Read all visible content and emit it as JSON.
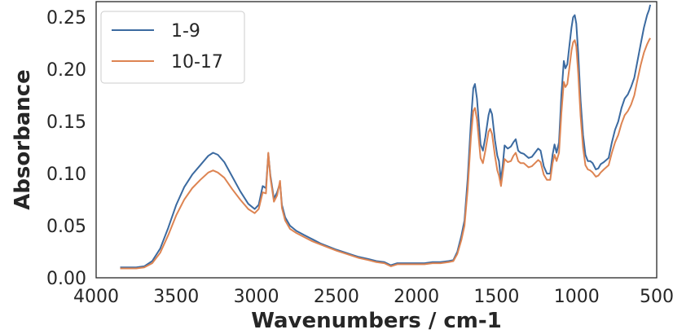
{
  "chart_data": {
    "type": "line",
    "title": "",
    "xlabel": "Wavenumbers / cm-1",
    "ylabel": "Absorbance",
    "xlim": [
      4000,
      500
    ],
    "ylim": [
      0.0,
      0.265
    ],
    "x_reversed": true,
    "grid": false,
    "legend_position": "top-left",
    "x_ticks": [
      {
        "value": 4000,
        "label": "4000"
      },
      {
        "value": 3500,
        "label": "3500"
      },
      {
        "value": 3000,
        "label": "3000"
      },
      {
        "value": 2500,
        "label": "2500"
      },
      {
        "value": 2000,
        "label": "2000"
      },
      {
        "value": 1500,
        "label": "1500"
      },
      {
        "value": 1000,
        "label": "1000"
      },
      {
        "value": 500,
        "label": "500"
      }
    ],
    "y_ticks": [
      {
        "value": 0.0,
        "label": "0.00"
      },
      {
        "value": 0.05,
        "label": "0.05"
      },
      {
        "value": 0.1,
        "label": "0.10"
      },
      {
        "value": 0.15,
        "label": "0.15"
      },
      {
        "value": 0.2,
        "label": "0.20"
      },
      {
        "value": 0.25,
        "label": "0.25"
      }
    ],
    "series": [
      {
        "name": "1-9",
        "color": "#3b6aa0",
        "points": [
          [
            3850,
            0.01
          ],
          [
            3800,
            0.01
          ],
          [
            3750,
            0.01
          ],
          [
            3700,
            0.011
          ],
          [
            3650,
            0.016
          ],
          [
            3600,
            0.028
          ],
          [
            3550,
            0.048
          ],
          [
            3500,
            0.07
          ],
          [
            3450,
            0.087
          ],
          [
            3400,
            0.099
          ],
          [
            3350,
            0.108
          ],
          [
            3300,
            0.117
          ],
          [
            3270,
            0.12
          ],
          [
            3240,
            0.118
          ],
          [
            3200,
            0.111
          ],
          [
            3150,
            0.097
          ],
          [
            3100,
            0.083
          ],
          [
            3050,
            0.071
          ],
          [
            3010,
            0.066
          ],
          [
            2985,
            0.07
          ],
          [
            2960,
            0.088
          ],
          [
            2940,
            0.086
          ],
          [
            2925,
            0.119
          ],
          [
            2912,
            0.098
          ],
          [
            2890,
            0.076
          ],
          [
            2870,
            0.082
          ],
          [
            2852,
            0.091
          ],
          [
            2840,
            0.07
          ],
          [
            2820,
            0.058
          ],
          [
            2790,
            0.05
          ],
          [
            2750,
            0.045
          ],
          [
            2700,
            0.041
          ],
          [
            2650,
            0.037
          ],
          [
            2600,
            0.033
          ],
          [
            2500,
            0.027
          ],
          [
            2400,
            0.022
          ],
          [
            2360,
            0.02
          ],
          [
            2300,
            0.018
          ],
          [
            2250,
            0.016
          ],
          [
            2200,
            0.015
          ],
          [
            2160,
            0.012
          ],
          [
            2120,
            0.014
          ],
          [
            2050,
            0.014
          ],
          [
            2000,
            0.014
          ],
          [
            1950,
            0.014
          ],
          [
            1900,
            0.015
          ],
          [
            1850,
            0.015
          ],
          [
            1800,
            0.016
          ],
          [
            1770,
            0.017
          ],
          [
            1745,
            0.025
          ],
          [
            1720,
            0.04
          ],
          [
            1700,
            0.055
          ],
          [
            1680,
            0.095
          ],
          [
            1660,
            0.15
          ],
          [
            1645,
            0.182
          ],
          [
            1635,
            0.186
          ],
          [
            1622,
            0.172
          ],
          [
            1600,
            0.128
          ],
          [
            1585,
            0.122
          ],
          [
            1570,
            0.135
          ],
          [
            1550,
            0.156
          ],
          [
            1540,
            0.162
          ],
          [
            1528,
            0.157
          ],
          [
            1510,
            0.132
          ],
          [
            1495,
            0.117
          ],
          [
            1485,
            0.112
          ],
          [
            1472,
            0.093
          ],
          [
            1460,
            0.11
          ],
          [
            1450,
            0.127
          ],
          [
            1430,
            0.124
          ],
          [
            1410,
            0.126
          ],
          [
            1395,
            0.13
          ],
          [
            1380,
            0.133
          ],
          [
            1365,
            0.122
          ],
          [
            1350,
            0.12
          ],
          [
            1330,
            0.119
          ],
          [
            1300,
            0.115
          ],
          [
            1280,
            0.116
          ],
          [
            1260,
            0.12
          ],
          [
            1240,
            0.124
          ],
          [
            1225,
            0.122
          ],
          [
            1205,
            0.107
          ],
          [
            1185,
            0.1
          ],
          [
            1165,
            0.1
          ],
          [
            1150,
            0.118
          ],
          [
            1138,
            0.128
          ],
          [
            1125,
            0.12
          ],
          [
            1110,
            0.13
          ],
          [
            1095,
            0.175
          ],
          [
            1080,
            0.208
          ],
          [
            1070,
            0.201
          ],
          [
            1058,
            0.205
          ],
          [
            1045,
            0.223
          ],
          [
            1032,
            0.24
          ],
          [
            1022,
            0.25
          ],
          [
            1012,
            0.252
          ],
          [
            1002,
            0.244
          ],
          [
            990,
            0.215
          ],
          [
            975,
            0.17
          ],
          [
            960,
            0.137
          ],
          [
            945,
            0.118
          ],
          [
            930,
            0.112
          ],
          [
            915,
            0.112
          ],
          [
            900,
            0.11
          ],
          [
            880,
            0.104
          ],
          [
            865,
            0.105
          ],
          [
            850,
            0.109
          ],
          [
            830,
            0.111
          ],
          [
            800,
            0.115
          ],
          [
            780,
            0.13
          ],
          [
            760,
            0.142
          ],
          [
            740,
            0.15
          ],
          [
            720,
            0.163
          ],
          [
            700,
            0.172
          ],
          [
            680,
            0.176
          ],
          [
            660,
            0.183
          ],
          [
            640,
            0.192
          ],
          [
            620,
            0.208
          ],
          [
            600,
            0.224
          ],
          [
            580,
            0.24
          ],
          [
            560,
            0.252
          ],
          [
            548,
            0.257
          ],
          [
            540,
            0.262
          ]
        ]
      },
      {
        "name": "10-17",
        "color": "#dd8452",
        "points": [
          [
            3850,
            0.009
          ],
          [
            3800,
            0.009
          ],
          [
            3750,
            0.009
          ],
          [
            3700,
            0.01
          ],
          [
            3650,
            0.014
          ],
          [
            3600,
            0.024
          ],
          [
            3550,
            0.041
          ],
          [
            3500,
            0.06
          ],
          [
            3450,
            0.075
          ],
          [
            3400,
            0.086
          ],
          [
            3350,
            0.094
          ],
          [
            3300,
            0.101
          ],
          [
            3270,
            0.103
          ],
          [
            3240,
            0.101
          ],
          [
            3200,
            0.096
          ],
          [
            3150,
            0.085
          ],
          [
            3100,
            0.075
          ],
          [
            3050,
            0.066
          ],
          [
            3010,
            0.062
          ],
          [
            2985,
            0.066
          ],
          [
            2960,
            0.082
          ],
          [
            2940,
            0.081
          ],
          [
            2925,
            0.12
          ],
          [
            2912,
            0.096
          ],
          [
            2890,
            0.073
          ],
          [
            2870,
            0.079
          ],
          [
            2852,
            0.093
          ],
          [
            2840,
            0.067
          ],
          [
            2820,
            0.055
          ],
          [
            2790,
            0.047
          ],
          [
            2750,
            0.043
          ],
          [
            2700,
            0.039
          ],
          [
            2650,
            0.035
          ],
          [
            2600,
            0.032
          ],
          [
            2500,
            0.026
          ],
          [
            2400,
            0.021
          ],
          [
            2360,
            0.019
          ],
          [
            2300,
            0.017
          ],
          [
            2250,
            0.015
          ],
          [
            2200,
            0.014
          ],
          [
            2160,
            0.011
          ],
          [
            2120,
            0.013
          ],
          [
            2050,
            0.013
          ],
          [
            2000,
            0.013
          ],
          [
            1950,
            0.013
          ],
          [
            1900,
            0.014
          ],
          [
            1850,
            0.014
          ],
          [
            1800,
            0.015
          ],
          [
            1770,
            0.016
          ],
          [
            1745,
            0.023
          ],
          [
            1720,
            0.036
          ],
          [
            1700,
            0.05
          ],
          [
            1680,
            0.085
          ],
          [
            1660,
            0.135
          ],
          [
            1645,
            0.16
          ],
          [
            1635,
            0.163
          ],
          [
            1622,
            0.152
          ],
          [
            1600,
            0.115
          ],
          [
            1585,
            0.11
          ],
          [
            1570,
            0.122
          ],
          [
            1550,
            0.14
          ],
          [
            1540,
            0.143
          ],
          [
            1528,
            0.138
          ],
          [
            1510,
            0.117
          ],
          [
            1495,
            0.103
          ],
          [
            1485,
            0.098
          ],
          [
            1472,
            0.088
          ],
          [
            1460,
            0.102
          ],
          [
            1450,
            0.114
          ],
          [
            1430,
            0.111
          ],
          [
            1410,
            0.112
          ],
          [
            1395,
            0.117
          ],
          [
            1380,
            0.12
          ],
          [
            1365,
            0.112
          ],
          [
            1350,
            0.11
          ],
          [
            1330,
            0.11
          ],
          [
            1300,
            0.106
          ],
          [
            1280,
            0.107
          ],
          [
            1260,
            0.11
          ],
          [
            1240,
            0.113
          ],
          [
            1225,
            0.111
          ],
          [
            1205,
            0.099
          ],
          [
            1185,
            0.094
          ],
          [
            1165,
            0.094
          ],
          [
            1150,
            0.11
          ],
          [
            1138,
            0.118
          ],
          [
            1125,
            0.112
          ],
          [
            1110,
            0.12
          ],
          [
            1095,
            0.158
          ],
          [
            1080,
            0.188
          ],
          [
            1070,
            0.183
          ],
          [
            1058,
            0.186
          ],
          [
            1045,
            0.202
          ],
          [
            1032,
            0.218
          ],
          [
            1022,
            0.226
          ],
          [
            1012,
            0.228
          ],
          [
            1002,
            0.222
          ],
          [
            990,
            0.196
          ],
          [
            975,
            0.155
          ],
          [
            960,
            0.125
          ],
          [
            945,
            0.108
          ],
          [
            930,
            0.104
          ],
          [
            915,
            0.103
          ],
          [
            900,
            0.101
          ],
          [
            880,
            0.097
          ],
          [
            865,
            0.098
          ],
          [
            850,
            0.101
          ],
          [
            830,
            0.104
          ],
          [
            800,
            0.108
          ],
          [
            780,
            0.12
          ],
          [
            760,
            0.13
          ],
          [
            740,
            0.137
          ],
          [
            720,
            0.148
          ],
          [
            700,
            0.156
          ],
          [
            680,
            0.16
          ],
          [
            660,
            0.166
          ],
          [
            640,
            0.175
          ],
          [
            620,
            0.19
          ],
          [
            600,
            0.204
          ],
          [
            580,
            0.216
          ],
          [
            560,
            0.224
          ],
          [
            548,
            0.228
          ],
          [
            540,
            0.23
          ]
        ]
      }
    ]
  }
}
